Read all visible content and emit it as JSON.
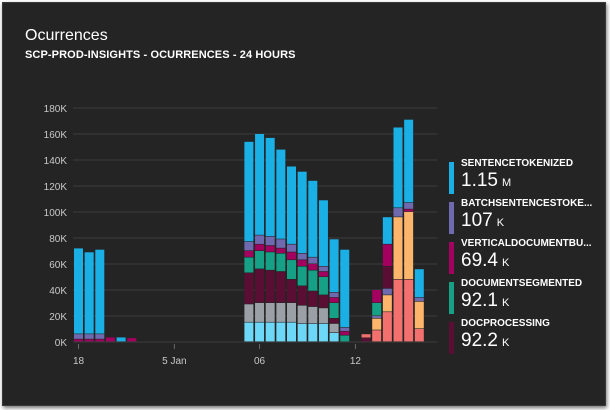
{
  "tile": {
    "title": "Ocurrences",
    "subtitle": "SCP-PROD-INSIGHTS - OCURRENCES - 24 HOURS"
  },
  "legend": [
    {
      "name": "SENTENCETOKENIZED",
      "value": "1.15",
      "unit": "M",
      "color": "#1ab0e6"
    },
    {
      "name": "BATCHSENTENCESTOKE...",
      "value": "107",
      "unit": "K",
      "color": "#6f6ab0"
    },
    {
      "name": "VERTICALDOCUMENTBU...",
      "value": "69.4",
      "unit": "K",
      "color": "#a3005f"
    },
    {
      "name": "DOCUMENTSEGMENTED",
      "value": "92.1",
      "unit": "K",
      "color": "#16a085"
    },
    {
      "name": "DOCPROCESSING",
      "value": "92.2",
      "unit": "K",
      "color": "#5b0e34"
    }
  ],
  "chart_data": {
    "type": "bar",
    "stacked": true,
    "y_ticks": [
      "0K",
      "20K",
      "40K",
      "60K",
      "80K",
      "100K",
      "120K",
      "140K",
      "160K",
      "180K"
    ],
    "ylim": [
      0,
      180000
    ],
    "x_tick_labels": [
      {
        "label": "18",
        "slot": 0
      },
      {
        "label": "5 Jan",
        "slot": 9
      },
      {
        "label": "06",
        "slot": 17
      },
      {
        "label": "12",
        "slot": 26
      }
    ],
    "grid": true,
    "stack_colors": [
      "#6dd7f7",
      "#9aa0a6",
      "#5b0e34",
      "#16a085",
      "#a3005f",
      "#6f6ab0",
      "#1ab0e6"
    ],
    "bars": [
      [
        0,
        0,
        0,
        0,
        2000,
        4000,
        66000
      ],
      [
        0,
        0,
        0,
        0,
        2000,
        4000,
        63000
      ],
      [
        0,
        0,
        0,
        0,
        2000,
        4000,
        65000
      ],
      [
        0,
        0,
        0,
        0,
        3500,
        0,
        0
      ],
      [
        0,
        0,
        0,
        0,
        0,
        0,
        3500
      ],
      [
        0,
        0,
        0,
        0,
        3000,
        0,
        0
      ],
      [
        0,
        0,
        0,
        0,
        0,
        0,
        0
      ],
      [
        0,
        0,
        0,
        0,
        0,
        0,
        0
      ],
      [
        0,
        0,
        0,
        0,
        0,
        0,
        0
      ],
      [
        0,
        0,
        0,
        0,
        0,
        0,
        0
      ],
      [
        0,
        0,
        0,
        0,
        0,
        0,
        0
      ],
      [
        0,
        0,
        0,
        0,
        0,
        0,
        0
      ],
      [
        0,
        0,
        0,
        0,
        0,
        0,
        0
      ],
      [
        0,
        0,
        0,
        0,
        0,
        0,
        0
      ],
      [
        0,
        0,
        0,
        0,
        0,
        0,
        0
      ],
      [
        0,
        0,
        0,
        0,
        0,
        0,
        0
      ],
      [
        15000,
        14000,
        24000,
        12000,
        5000,
        7000,
        77000
      ],
      [
        15000,
        15000,
        26000,
        14000,
        5000,
        7000,
        78000
      ],
      [
        15000,
        15000,
        25000,
        14000,
        5000,
        7000,
        76000
      ],
      [
        15000,
        15000,
        24000,
        14000,
        4000,
        7000,
        69000
      ],
      [
        15000,
        15000,
        18000,
        15000,
        6000,
        6000,
        60000
      ],
      [
        14000,
        14000,
        15000,
        15000,
        5000,
        5000,
        63000
      ],
      [
        14000,
        13000,
        12000,
        16000,
        5000,
        5000,
        59000
      ],
      [
        14000,
        12000,
        10000,
        14000,
        4000,
        4000,
        51000
      ],
      [
        7000,
        7000,
        4000,
        12000,
        4000,
        4000,
        41000
      ],
      [
        0,
        0,
        0,
        5000,
        3000,
        3000,
        60000
      ],
      [
        0,
        0,
        0,
        0,
        0,
        0,
        0
      ],
      [
        0,
        0,
        0,
        0,
        0,
        0,
        0
      ],
      [
        0,
        0,
        0,
        0,
        0,
        0,
        0
      ],
      [
        0,
        0,
        0,
        0,
        0,
        0,
        0
      ],
      [
        0,
        0,
        0,
        0,
        0,
        0,
        0
      ],
      [
        0,
        0,
        0,
        0,
        0,
        0,
        0
      ],
      [
        0,
        0,
        0,
        0,
        0,
        0,
        0
      ],
      [
        0,
        0,
        0,
        0,
        0,
        0,
        0
      ],
      [
        0,
        0,
        0,
        0,
        0,
        0,
        0
      ]
    ]
  }
}
